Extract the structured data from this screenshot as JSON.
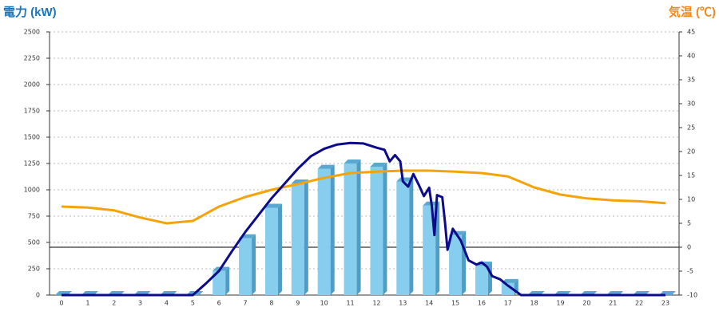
{
  "chart_data": {
    "type": "bar",
    "title": "電力 (kW)",
    "y2_title": "気温 (℃)",
    "categories": [
      "0",
      "1",
      "2",
      "3",
      "4",
      "5",
      "6",
      "7",
      "8",
      "9",
      "10",
      "11",
      "12",
      "13",
      "14",
      "15",
      "16",
      "17",
      "18",
      "19",
      "20",
      "21",
      "22",
      "23"
    ],
    "series": [
      {
        "color": "#87cdee",
        "values": [
          0,
          0,
          0,
          0,
          0,
          0,
          230,
          540,
          830,
          1060,
          1200,
          1250,
          1220,
          1080,
          850,
          570,
          280,
          115,
          0,
          0,
          0,
          0,
          0,
          0
        ]
      }
    ],
    "line": {
      "color": "#0b0b8c",
      "x": [
        0,
        5,
        5.5,
        6,
        6.5,
        7,
        7.5,
        8,
        8.5,
        9,
        9.5,
        10,
        10.5,
        11,
        11.5,
        12,
        12.3,
        12.5,
        12.7,
        12.9,
        13,
        13.2,
        13.4,
        13.6,
        13.8,
        14,
        14.1,
        14.2,
        14.3,
        14.5,
        14.6,
        14.7,
        14.9,
        15.2,
        15.5,
        15.8,
        16,
        16.2,
        16.4,
        16.7,
        17,
        17.5,
        23
      ],
      "values": [
        0,
        0,
        110,
        230,
        420,
        600,
        760,
        920,
        1060,
        1200,
        1320,
        1390,
        1430,
        1445,
        1440,
        1400,
        1380,
        1270,
        1330,
        1270,
        1080,
        1030,
        1150,
        1050,
        940,
        1020,
        850,
        570,
        950,
        930,
        700,
        430,
        630,
        520,
        330,
        290,
        310,
        270,
        180,
        150,
        90,
        0,
        0
      ]
    },
    "temperature": {
      "color": "#f5a30a",
      "axis": "y2",
      "values": [
        8.5,
        8.3,
        7.7,
        6.2,
        5.0,
        5.5,
        8.5,
        10.5,
        12,
        13.2,
        14.5,
        15.5,
        15.8,
        16,
        16,
        15.8,
        15.5,
        14.8,
        12.5,
        11,
        10.2,
        9.8,
        9.6,
        9.2
      ]
    },
    "ylim": [
      0,
      2500
    ],
    "yticks": [
      0,
      250,
      500,
      750,
      1000,
      1250,
      1500,
      1750,
      2000,
      2250,
      2500
    ],
    "y2lim": [
      -10,
      45
    ],
    "y2ticks": [
      -10,
      -5,
      0,
      5,
      10,
      15,
      20,
      25,
      30,
      35,
      40,
      45
    ],
    "grid": true
  }
}
